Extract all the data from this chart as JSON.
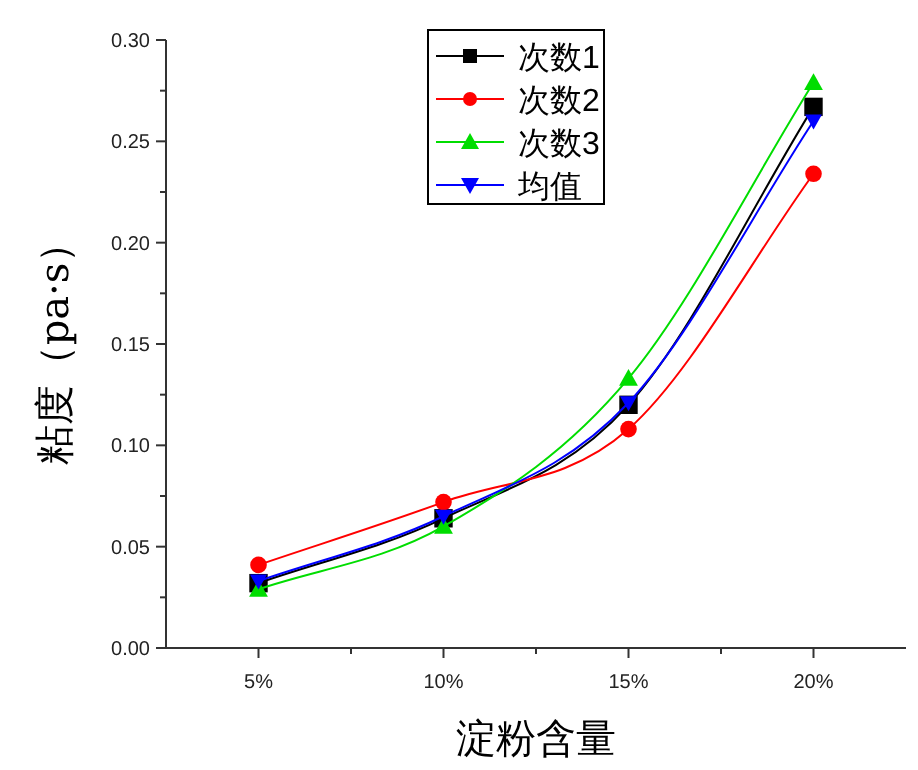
{
  "chart_data": {
    "type": "line",
    "xlabel": "淀粉含量",
    "ylabel": "粘度（pa·s）",
    "x": [
      5,
      10,
      15,
      20
    ],
    "xlim": [
      2.5,
      22.5
    ],
    "xticks": [
      {
        "value": 5,
        "label": "5%"
      },
      {
        "value": 7.5,
        "label": null
      },
      {
        "value": 10,
        "label": "10%"
      },
      {
        "value": 12.5,
        "label": null
      },
      {
        "value": 15,
        "label": "15%"
      },
      {
        "value": 17.5,
        "label": null
      },
      {
        "value": 20,
        "label": "20%"
      }
    ],
    "ylim": [
      0,
      0.3
    ],
    "yticks": [
      {
        "value": 0,
        "label": "0.00"
      },
      {
        "value": 0.025,
        "label": null
      },
      {
        "value": 0.05,
        "label": "0.05"
      },
      {
        "value": 0.075,
        "label": null
      },
      {
        "value": 0.1,
        "label": "0.10"
      },
      {
        "value": 0.125,
        "label": null
      },
      {
        "value": 0.15,
        "label": "0.15"
      },
      {
        "value": 0.175,
        "label": null
      },
      {
        "value": 0.2,
        "label": "0.20"
      },
      {
        "value": 0.225,
        "label": null
      },
      {
        "value": 0.25,
        "label": "0.25"
      },
      {
        "value": 0.275,
        "label": null
      },
      {
        "value": 0.3,
        "label": "0.30"
      }
    ],
    "grid": false,
    "legend": "top",
    "series": [
      {
        "name": "次数1",
        "color": "#000000",
        "marker": "square",
        "values": [
          0.032,
          0.064,
          0.12,
          0.267
        ]
      },
      {
        "name": "次数2",
        "color": "#ff0000",
        "marker": "circle",
        "values": [
          0.041,
          0.072,
          0.108,
          0.234
        ]
      },
      {
        "name": "次数3",
        "color": "#00dd00",
        "marker": "triangle",
        "values": [
          0.029,
          0.06,
          0.133,
          0.279
        ]
      },
      {
        "name": "均值",
        "color": "#0000ff",
        "marker": "triangle-down",
        "values": [
          0.033,
          0.065,
          0.121,
          0.26
        ]
      }
    ]
  }
}
